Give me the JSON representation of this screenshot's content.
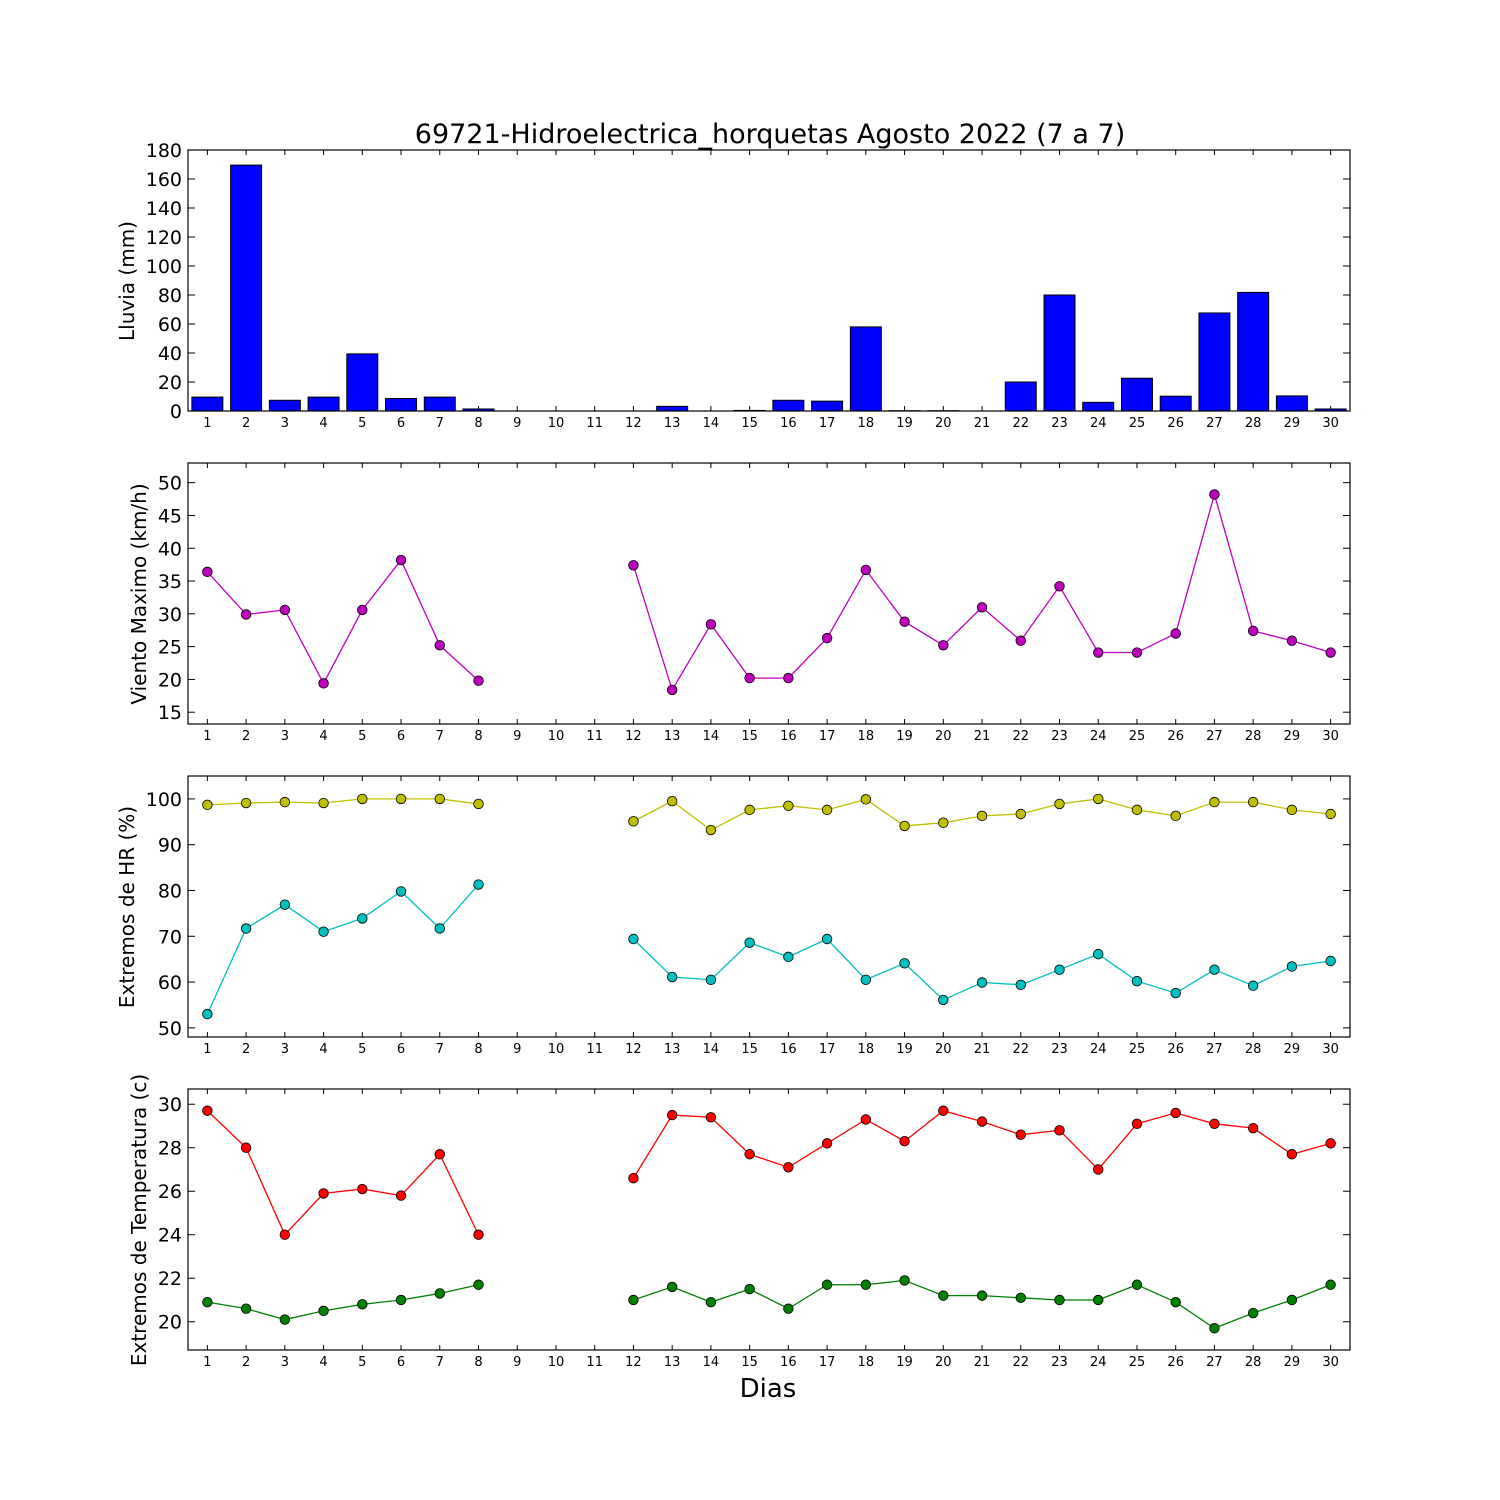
{
  "figure": {
    "title": "69721-Hidroelectrica_horquetas Agosto 2022  (7 a 7)",
    "xlabel": "Dias"
  },
  "chart_data": [
    {
      "type": "bar",
      "ylabel": "Lluvia (mm)",
      "ylim": [
        0,
        180
      ],
      "yticks": [
        0,
        20,
        40,
        60,
        80,
        100,
        120,
        140,
        160,
        180
      ],
      "categories": [
        1,
        2,
        3,
        4,
        5,
        6,
        7,
        8,
        9,
        10,
        11,
        12,
        13,
        14,
        15,
        16,
        17,
        18,
        19,
        20,
        21,
        22,
        23,
        24,
        25,
        26,
        27,
        28,
        29,
        30
      ],
      "values": [
        9.6,
        169.6,
        7.4,
        9.6,
        39.4,
        8.6,
        9.6,
        1.4,
        0,
        0,
        0,
        0,
        3.2,
        0,
        0.4,
        7.4,
        6.8,
        58,
        0.2,
        0.2,
        0,
        20,
        80,
        6,
        22.6,
        10.2,
        67.6,
        81.8,
        10.4,
        1.4
      ],
      "colors": {
        "bar": "#0000ff",
        "edge": "#000000"
      }
    },
    {
      "type": "line",
      "ylabel": "Viento Maximo (km/h)",
      "ylim": [
        13.2,
        53
      ],
      "yticks": [
        15,
        20,
        25,
        30,
        35,
        40,
        45,
        50
      ],
      "x": [
        1,
        2,
        3,
        4,
        5,
        6,
        7,
        8,
        9,
        10,
        11,
        12,
        13,
        14,
        15,
        16,
        17,
        18,
        19,
        20,
        21,
        22,
        23,
        24,
        25,
        26,
        27,
        28,
        29,
        30
      ],
      "series": [
        {
          "values": [
            36.4,
            29.9,
            30.6,
            19.4,
            30.6,
            38.2,
            25.2,
            19.8,
            null,
            null,
            null,
            37.4,
            18.4,
            28.4,
            20.2,
            20.2,
            26.3,
            36.7,
            28.8,
            25.2,
            31,
            25.9,
            34.2,
            24.1,
            24.1,
            27,
            48.2,
            27.4,
            25.9,
            24.1
          ],
          "color": "#bf00bf"
        }
      ]
    },
    {
      "type": "line",
      "ylabel": "Extremos de HR (%)",
      "ylim": [
        48,
        105
      ],
      "yticks": [
        50,
        60,
        70,
        80,
        90,
        100
      ],
      "x": [
        1,
        2,
        3,
        4,
        5,
        6,
        7,
        8,
        9,
        10,
        11,
        12,
        13,
        14,
        15,
        16,
        17,
        18,
        19,
        20,
        21,
        22,
        23,
        24,
        25,
        26,
        27,
        28,
        29,
        30
      ],
      "series": [
        {
          "values": [
            98.7,
            99.1,
            99.3,
            99.1,
            100,
            100,
            100,
            98.9,
            null,
            null,
            null,
            95.1,
            99.5,
            93.2,
            97.6,
            98.5,
            97.6,
            99.9,
            94.1,
            94.8,
            96.3,
            96.7,
            98.9,
            100,
            97.6,
            96.3,
            99.3,
            99.3,
            97.6,
            96.7
          ],
          "color": "#bfbf00"
        },
        {
          "values": [
            53,
            71.7,
            76.9,
            71,
            73.9,
            79.8,
            71.7,
            81.3,
            null,
            null,
            null,
            69.4,
            61.1,
            60.5,
            68.6,
            65.5,
            69.4,
            60.5,
            64.1,
            56.1,
            59.9,
            59.4,
            62.7,
            66.1,
            60.2,
            57.6,
            62.7,
            59.2,
            63.4,
            64.6
          ],
          "color": "#00bfbf"
        }
      ]
    },
    {
      "type": "line",
      "ylabel": "Extremos de Temperatura (c)",
      "ylim": [
        18.7,
        30.7
      ],
      "yticks": [
        20,
        22,
        24,
        26,
        28,
        30
      ],
      "x": [
        1,
        2,
        3,
        4,
        5,
        6,
        7,
        8,
        9,
        10,
        11,
        12,
        13,
        14,
        15,
        16,
        17,
        18,
        19,
        20,
        21,
        22,
        23,
        24,
        25,
        26,
        27,
        28,
        29,
        30
      ],
      "series": [
        {
          "values": [
            29.7,
            28,
            24,
            25.9,
            26.1,
            25.8,
            27.7,
            24,
            null,
            null,
            null,
            26.6,
            29.5,
            29.4,
            27.7,
            27.1,
            28.2,
            29.3,
            28.3,
            29.7,
            29.2,
            28.6,
            28.8,
            27,
            29.1,
            29.6,
            29.1,
            28.9,
            27.7,
            28.2
          ],
          "color": "#ff0000"
        },
        {
          "values": [
            20.9,
            20.6,
            20.1,
            20.5,
            20.8,
            21,
            21.3,
            21.7,
            null,
            null,
            null,
            21,
            21.6,
            20.9,
            21.5,
            20.6,
            21.7,
            21.7,
            21.9,
            21.2,
            21.2,
            21.1,
            21,
            21,
            21.7,
            20.9,
            19.7,
            20.4,
            21,
            21.7
          ],
          "color": "#008000"
        }
      ]
    }
  ]
}
